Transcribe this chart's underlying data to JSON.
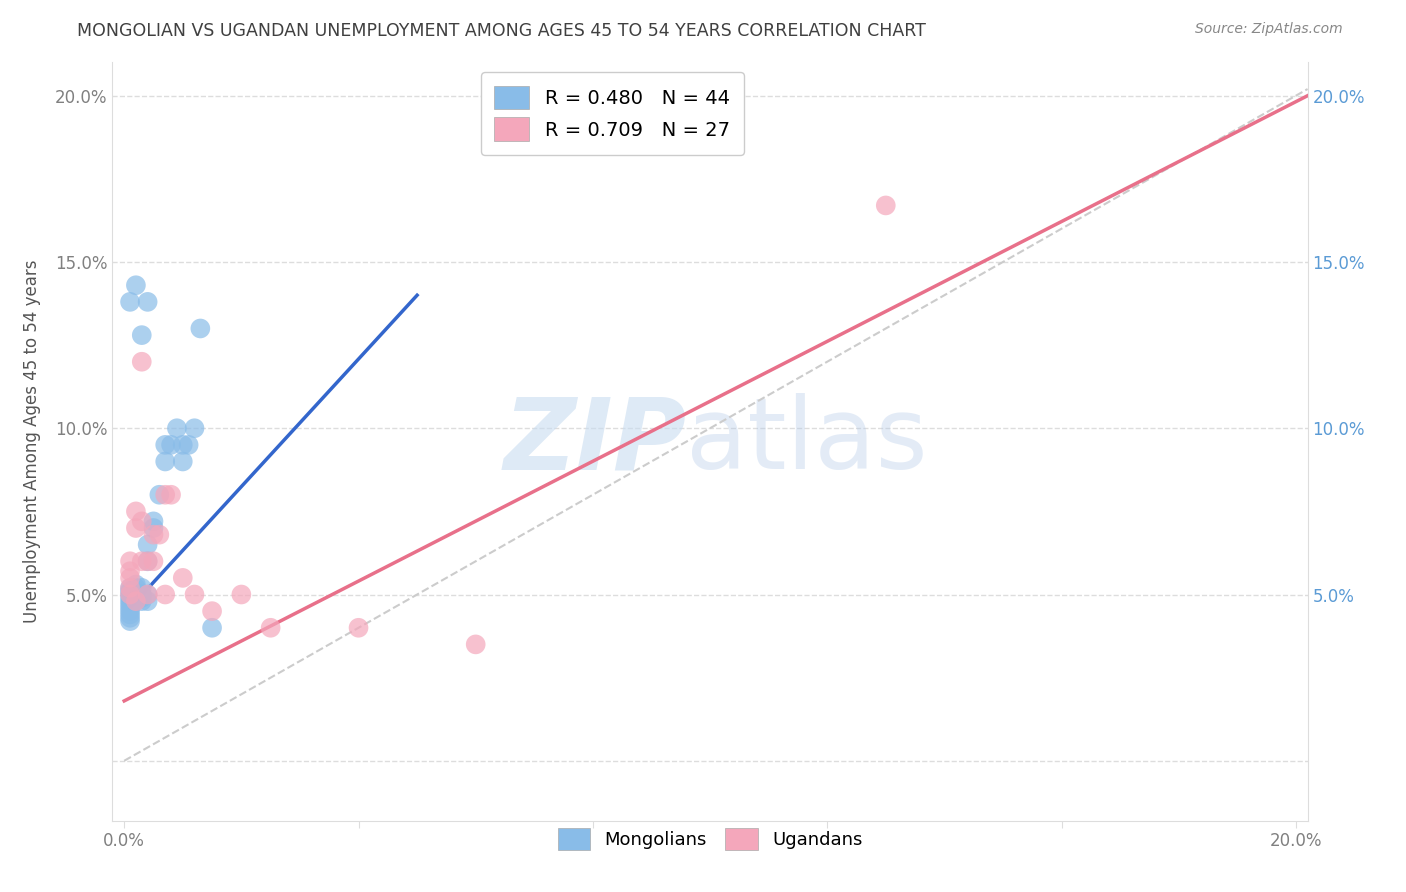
{
  "title": "MONGOLIAN VS UGANDAN UNEMPLOYMENT AMONG AGES 45 TO 54 YEARS CORRELATION CHART",
  "source": "Source: ZipAtlas.com",
  "ylabel": "Unemployment Among Ages 45 to 54 years",
  "xlabel": "",
  "xlim": [
    -0.002,
    0.202
  ],
  "ylim": [
    -0.018,
    0.21
  ],
  "xticks": [
    0.0,
    0.04,
    0.08,
    0.12,
    0.16,
    0.2
  ],
  "yticks": [
    0.0,
    0.05,
    0.1,
    0.15,
    0.2
  ],
  "mongolian_color": "#89BCE8",
  "ugandan_color": "#F4A7BB",
  "mongolian_R": 0.48,
  "mongolian_N": 44,
  "ugandan_R": 0.709,
  "ugandan_N": 27,
  "legend_label_mongolian": "Mongolians",
  "legend_label_ugandan": "Ugandans",
  "mongolian_scatter_x": [
    0.001,
    0.001,
    0.001,
    0.001,
    0.001,
    0.001,
    0.001,
    0.001,
    0.001,
    0.001,
    0.001,
    0.002,
    0.002,
    0.002,
    0.002,
    0.002,
    0.002,
    0.002,
    0.003,
    0.003,
    0.003,
    0.003,
    0.003,
    0.004,
    0.004,
    0.004,
    0.004,
    0.005,
    0.005,
    0.006,
    0.007,
    0.007,
    0.008,
    0.009,
    0.01,
    0.01,
    0.011,
    0.012,
    0.013,
    0.015,
    0.001,
    0.002,
    0.003,
    0.004
  ],
  "mongolian_scatter_y": [
    0.047,
    0.048,
    0.049,
    0.05,
    0.051,
    0.052,
    0.045,
    0.044,
    0.043,
    0.042,
    0.046,
    0.05,
    0.05,
    0.052,
    0.053,
    0.048,
    0.049,
    0.05,
    0.05,
    0.052,
    0.048,
    0.049,
    0.05,
    0.06,
    0.065,
    0.05,
    0.048,
    0.07,
    0.072,
    0.08,
    0.09,
    0.095,
    0.095,
    0.1,
    0.09,
    0.095,
    0.095,
    0.1,
    0.13,
    0.04,
    0.138,
    0.143,
    0.128,
    0.138
  ],
  "ugandan_scatter_x": [
    0.001,
    0.001,
    0.001,
    0.001,
    0.001,
    0.002,
    0.002,
    0.002,
    0.003,
    0.003,
    0.003,
    0.004,
    0.004,
    0.005,
    0.005,
    0.006,
    0.007,
    0.007,
    0.008,
    0.01,
    0.012,
    0.015,
    0.02,
    0.025,
    0.04,
    0.06,
    0.13
  ],
  "ugandan_scatter_y": [
    0.05,
    0.052,
    0.055,
    0.057,
    0.06,
    0.048,
    0.07,
    0.075,
    0.06,
    0.072,
    0.12,
    0.05,
    0.06,
    0.06,
    0.068,
    0.068,
    0.05,
    0.08,
    0.08,
    0.055,
    0.05,
    0.045,
    0.05,
    0.04,
    0.04,
    0.035,
    0.167
  ],
  "mongolian_line_x": [
    0.001,
    0.05
  ],
  "mongolian_line_y": [
    0.046,
    0.14
  ],
  "ugandan_line_x": [
    0.0,
    0.202
  ],
  "ugandan_line_y": [
    0.018,
    0.2
  ],
  "diagonal_line_x": [
    0.0,
    0.202
  ],
  "diagonal_line_y": [
    0.0,
    0.202
  ],
  "watermark_zip": "ZIP",
  "watermark_atlas": "atlas",
  "background_color": "#FFFFFF",
  "grid_color": "#DDDDDD",
  "title_color": "#404040",
  "source_color": "#888888",
  "mongolian_line_color": "#3366CC",
  "ugandan_line_color": "#E8708A",
  "diagonal_color": "#CCCCCC",
  "right_tick_color": "#5B9BD5",
  "left_tick_color": "#808080"
}
